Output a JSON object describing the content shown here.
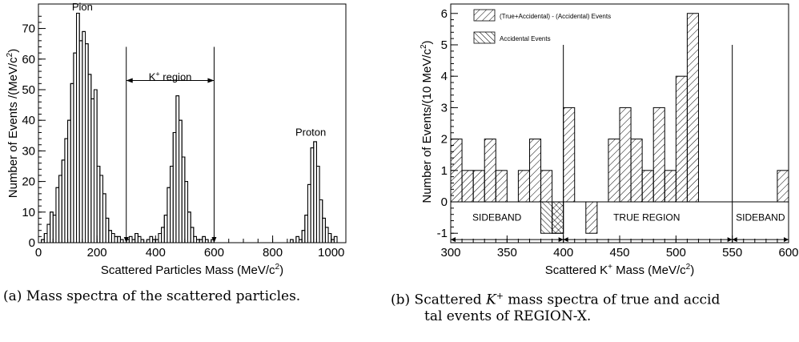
{
  "chart_data": [
    {
      "type": "bar",
      "title": "",
      "xlabel": "Scattered Particles Mass (MeV/c",
      "xlabel_sup": "2",
      "xlabel_end": ")",
      "ylabel": "Number of Events /(MeV/c",
      "ylabel_sup": "2",
      "ylabel_end": ")",
      "xlim": [
        0,
        1050
      ],
      "ylim": [
        0,
        78
      ],
      "xticks": [
        0,
        200,
        400,
        600,
        800,
        1000
      ],
      "yticks": [
        0,
        10,
        20,
        30,
        40,
        50,
        60,
        70
      ],
      "grid": false,
      "bin_width": 10,
      "series": [
        {
          "x_start": 0,
          "values": [
            0,
            1,
            3,
            6,
            10,
            9,
            18,
            22,
            27,
            34,
            40,
            52,
            62,
            75,
            66,
            69,
            65,
            55,
            47,
            50,
            25,
            22,
            16,
            8,
            4,
            3,
            2,
            2,
            1,
            0,
            1,
            2,
            1,
            3,
            2,
            1,
            0,
            1,
            2,
            1,
            1,
            3,
            5,
            9,
            18,
            25,
            36,
            48,
            40,
            28,
            20,
            10,
            5,
            2,
            1,
            1,
            2,
            1,
            0,
            1,
            0,
            0,
            0,
            0,
            0,
            0,
            0,
            0,
            0,
            0,
            0,
            0,
            0,
            0,
            0,
            0,
            0,
            0,
            0,
            0,
            0,
            0,
            0,
            0,
            0,
            0,
            1,
            0,
            2,
            1,
            4,
            9,
            19,
            31,
            33,
            25,
            14,
            8,
            5,
            3,
            1,
            2,
            0,
            0,
            0
          ]
        }
      ],
      "annotations": [
        {
          "text": "Pion",
          "x": 150,
          "y": 77
        },
        {
          "text": "K",
          "sup": "+",
          "rest": " region",
          "x": 450,
          "y": 54
        },
        {
          "text": "Proton",
          "x": 930,
          "y": 36
        }
      ],
      "markers": [
        {
          "label": "region-left",
          "x": 300,
          "y_top": 64
        },
        {
          "label": "region-right",
          "x": 600,
          "y_top": 64
        }
      ],
      "region_arrow": {
        "from": 300,
        "to": 600,
        "y": 53
      }
    },
    {
      "type": "bar",
      "title": "",
      "xlabel": "Scattered K",
      "xlabel_sup": "+",
      "xlabel_end": " Mass (MeV/c",
      "xlabel_sup2": "2",
      "xlabel_end2": ")",
      "ylabel": "Number of Events/(10 MeV/c",
      "ylabel_sup": "2",
      "ylabel_end": ")",
      "xlim": [
        300,
        600
      ],
      "ylim": [
        -1.3,
        6.3
      ],
      "xticks": [
        300,
        350,
        400,
        450,
        500,
        550,
        600
      ],
      "yticks": [
        -1,
        0,
        1,
        2,
        3,
        4,
        5,
        6
      ],
      "grid": false,
      "legend_position": "top-left",
      "bin_width": 10,
      "series": [
        {
          "name": "(True+Accidental) - (Accidental) Events",
          "x_start": 300,
          "values": [
            2,
            1,
            1,
            2,
            1,
            0,
            1,
            2,
            1,
            -1,
            3,
            0,
            -1,
            0,
            2,
            3,
            2,
            1,
            3,
            1,
            4,
            6,
            0,
            0,
            0,
            0,
            0,
            0,
            0,
            1
          ]
        },
        {
          "name": "Accidental Events",
          "x_start": 300,
          "values": [
            0,
            0,
            0,
            0,
            0,
            0,
            0,
            0,
            -1,
            -1,
            0,
            0,
            0,
            0,
            0,
            0,
            0,
            0,
            0,
            0,
            0,
            0,
            0,
            0,
            0,
            0,
            0,
            0,
            0,
            0
          ]
        }
      ],
      "region_labels": [
        {
          "text": "SIDEBAND",
          "x": 341
        },
        {
          "text": "TRUE REGION",
          "x": 474
        },
        {
          "text": "SIDEBAND",
          "x": 575
        }
      ],
      "region_lines": [
        400,
        550
      ],
      "region_arrow_y": -1.2
    }
  ],
  "captions": {
    "a": "(a)  Mass spectra of the scattered particles.",
    "b": "(b)  Scattered ",
    "b_sym": "K",
    "b_sup": "+",
    "b_rest": " mass spectra of true and accid",
    "b_line2": "tal events of REGION-X."
  }
}
